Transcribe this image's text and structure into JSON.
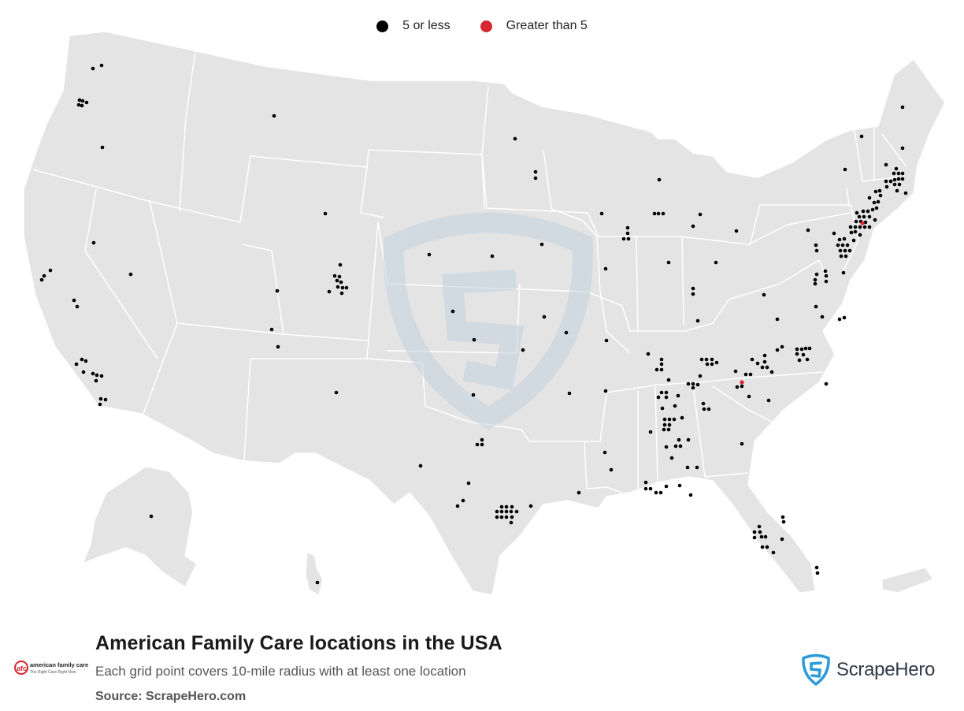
{
  "legend": {
    "items": [
      {
        "label": "5 or less",
        "color": "#000000"
      },
      {
        "label": "Greater than 5",
        "color": "#d62631"
      }
    ]
  },
  "title": "American Family Care locations in the USA",
  "subtitle": "Each grid point covers 10-mile radius with at least one location",
  "source": "Source: ScrapeHero.com",
  "brand_logo": {
    "name": "american family care",
    "tagline": "The Right Care Right Now",
    "mark": "afc",
    "icon": "afc-logo-icon"
  },
  "publisher": {
    "name": "ScrapeHero",
    "icon": "scrapehero-shield-icon"
  },
  "colors": {
    "land": "#e5e5e5",
    "border": "#ffffff",
    "point": "#000000",
    "highlight": "#d62631",
    "watermark": "#c5d3e0"
  }
}
